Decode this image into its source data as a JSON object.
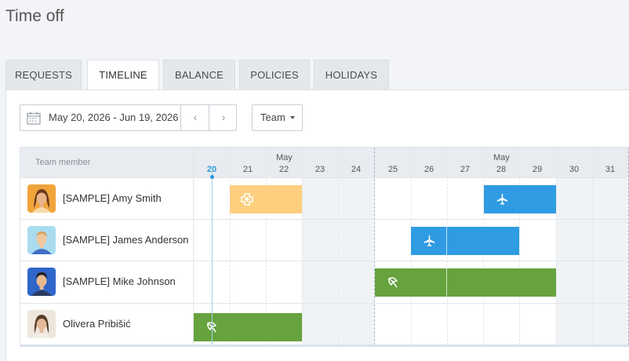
{
  "page": {
    "title": "Time off"
  },
  "tabs": [
    {
      "label": "REQUESTS",
      "active": false
    },
    {
      "label": "TIMELINE",
      "active": true
    },
    {
      "label": "BALANCE",
      "active": false
    },
    {
      "label": "POLICIES",
      "active": false
    },
    {
      "label": "HOLIDAYS",
      "active": false
    }
  ],
  "toolbar": {
    "date_range": "May 20, 2026 - Jun 19, 2026",
    "prev_glyph": "‹",
    "next_glyph": "›",
    "group_by": "Team"
  },
  "timeline": {
    "member_column_label": "Team member",
    "month_labels": [
      "May",
      "May"
    ],
    "days": [
      "20",
      "21",
      "22",
      "23",
      "24",
      "25",
      "26",
      "27",
      "28",
      "29",
      "30",
      "31"
    ],
    "today": "20",
    "colors": {
      "sick": "#fdcf7e",
      "vacation": "#2f9be3",
      "holiday": "#66a23d",
      "today": "#2a9be0"
    },
    "members": [
      {
        "name": "[SAMPLE] Amy Smith",
        "avatar": "avatar-amy",
        "time_off": [
          {
            "type": "sick",
            "icon": "medical-cross-icon",
            "start": "21",
            "end": "22"
          },
          {
            "type": "vacation",
            "icon": "airplane-icon",
            "start": "28",
            "end": "29"
          }
        ]
      },
      {
        "name": "[SAMPLE] James Anderson",
        "avatar": "avatar-james",
        "time_off": [
          {
            "type": "vacation",
            "icon": "airplane-icon",
            "start": "26",
            "end": "28"
          }
        ]
      },
      {
        "name": "[SAMPLE] Mike Johnson",
        "avatar": "avatar-mike",
        "time_off": [
          {
            "type": "holiday",
            "icon": "beach-umbrella-icon",
            "start": "25",
            "end": "29"
          }
        ]
      },
      {
        "name": "Olivera Pribišić",
        "avatar": "avatar-olivera",
        "time_off": [
          {
            "type": "holiday",
            "icon": "beach-umbrella-icon",
            "start": "20",
            "end": "22"
          }
        ]
      }
    ]
  }
}
